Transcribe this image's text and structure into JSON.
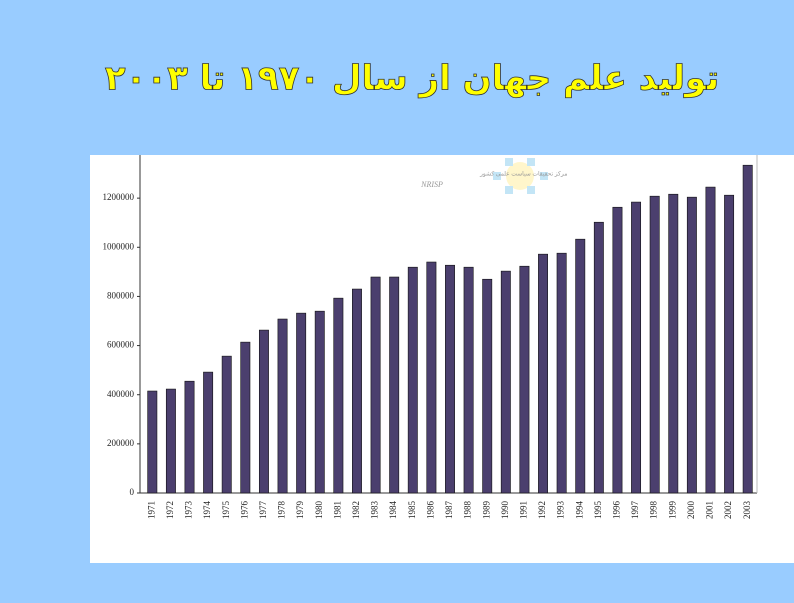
{
  "chart_data": {
    "type": "bar",
    "title": "تولید علم جهان از سال ۱۹۷۰ تا ۲۰۰۳",
    "annotations": [
      "مرکز تحقیقات سیاست علمی کشور",
      "NRISP"
    ],
    "categories": [
      "1971",
      "1972",
      "1973",
      "1974",
      "1975",
      "1976",
      "1977",
      "1978",
      "1979",
      "1980",
      "1981",
      "1982",
      "1983",
      "1984",
      "1985",
      "1986",
      "1987",
      "1988",
      "1989",
      "1990",
      "1991",
      "1992",
      "1993",
      "1994",
      "1995",
      "1996",
      "1997",
      "1998",
      "1999",
      "2000",
      "2001",
      "2002",
      "2003"
    ],
    "values": [
      415000,
      423000,
      455000,
      492000,
      557000,
      614000,
      663000,
      708000,
      732000,
      740000,
      793000,
      830000,
      879000,
      879000,
      919000,
      940000,
      927000,
      919000,
      870000,
      903000,
      923000,
      972000,
      976000,
      1033000,
      1102000,
      1163000,
      1184000,
      1208000,
      1216000,
      1204000,
      1245000,
      1212000,
      1334000
    ],
    "color": "#4b3f6e",
    "ylim": [
      0,
      1400000
    ],
    "yticks": [
      0,
      200000,
      400000,
      600000,
      800000,
      1000000,
      1200000
    ],
    "grid": false
  }
}
